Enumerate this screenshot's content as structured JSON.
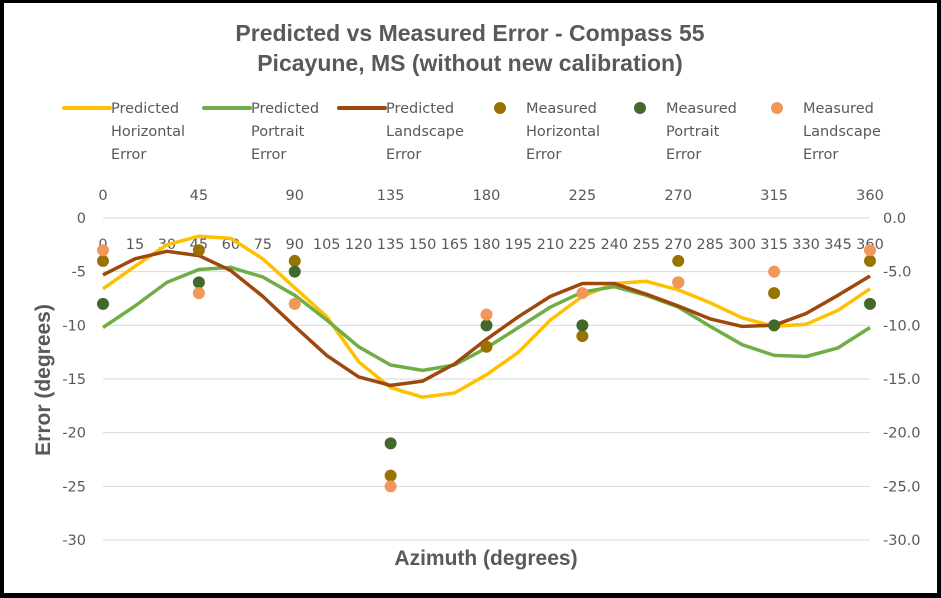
{
  "chart_data": {
    "type": "line",
    "title": "Predicted vs Measured Error - Compass 55",
    "subtitle": "Picayune, MS (without new calibration)",
    "xlabel": "Azimuth (degrees)",
    "ylabel": "Error (degrees)",
    "ylim": [
      -30,
      0
    ],
    "xlim": [
      0,
      360
    ],
    "grid": true,
    "legend_position": "top",
    "y_ticks_left": [
      "0",
      "-5",
      "-10",
      "-15",
      "-20",
      "-25",
      "-30"
    ],
    "y_ticks_right": [
      "0.0",
      "-5.0",
      "-10.0",
      "-15.0",
      "-20.0",
      "-25.0",
      "-30.0"
    ],
    "y_tick_values": [
      0,
      -5,
      -10,
      -15,
      -20,
      -25,
      -30
    ],
    "x_ticks_top": [
      "0",
      "45",
      "90",
      "135",
      "180",
      "225",
      "270",
      "315",
      "360"
    ],
    "x_ticks_top_values": [
      0,
      45,
      90,
      135,
      180,
      225,
      270,
      315,
      360
    ],
    "x_ticks_inner": [
      "0",
      "15",
      "30",
      "45",
      "60",
      "75",
      "90",
      "105",
      "120",
      "135",
      "150",
      "165",
      "180",
      "195",
      "210",
      "225",
      "240",
      "255",
      "270",
      "285",
      "300",
      "315",
      "330",
      "345",
      "360"
    ],
    "x": [
      0,
      15,
      30,
      45,
      60,
      75,
      90,
      105,
      120,
      135,
      150,
      165,
      180,
      195,
      210,
      225,
      240,
      255,
      270,
      285,
      300,
      315,
      330,
      345,
      360
    ],
    "series": [
      {
        "name": "Predicted Horizontal Error",
        "kind": "line",
        "color": "#FFC000",
        "legend_lines": [
          "Predicted",
          "Horizontal",
          "Error"
        ],
        "values": [
          -6.6,
          -4.5,
          -2.5,
          -1.7,
          -1.9,
          -3.8,
          -6.5,
          -9.2,
          -13.4,
          -15.8,
          -16.7,
          -16.3,
          -14.6,
          -12.5,
          -9.5,
          -7.3,
          -6.1,
          -5.9,
          -6.7,
          -7.9,
          -9.3,
          -10.1,
          -9.9,
          -8.6,
          -6.6
        ]
      },
      {
        "name": "Predicted Portrait Error",
        "kind": "line",
        "color": "#70AD47",
        "legend_lines": [
          "Predicted",
          "Portrait",
          "Error"
        ],
        "values": [
          -10.2,
          -8.2,
          -6.0,
          -4.8,
          -4.6,
          -5.5,
          -7.2,
          -9.5,
          -12.0,
          -13.7,
          -14.2,
          -13.7,
          -12.1,
          -10.2,
          -8.3,
          -6.9,
          -6.4,
          -7.2,
          -8.3,
          -10.1,
          -11.8,
          -12.8,
          -12.9,
          -12.1,
          -10.2
        ]
      },
      {
        "name": "Predicted Landscape Error",
        "kind": "line",
        "color": "#9E480E",
        "legend_lines": [
          "Predicted",
          "Landscape",
          "Error"
        ],
        "values": [
          -5.3,
          -3.8,
          -3.1,
          -3.5,
          -4.9,
          -7.3,
          -10.1,
          -12.8,
          -14.8,
          -15.6,
          -15.2,
          -13.6,
          -11.3,
          -9.2,
          -7.3,
          -6.1,
          -6.1,
          -7.1,
          -8.2,
          -9.4,
          -10.1,
          -10.0,
          -8.9,
          -7.2,
          -5.4
        ]
      },
      {
        "name": "Measured Horizontal Error",
        "kind": "scatter",
        "color": "#997300",
        "legend_lines": [
          "Measured",
          "Horizontal",
          "Error"
        ],
        "x": [
          0,
          45,
          90,
          135,
          180,
          225,
          270,
          315,
          360
        ],
        "values": [
          -4,
          -3,
          -4,
          -24,
          -12,
          -11,
          -4,
          -7,
          -4
        ]
      },
      {
        "name": "Measured Portrait Error",
        "kind": "scatter",
        "color": "#43682B",
        "legend_lines": [
          "Measured",
          "Portrait",
          "Error"
        ],
        "x": [
          0,
          45,
          90,
          135,
          180,
          225,
          270,
          315,
          360
        ],
        "values": [
          -8,
          -6,
          -5,
          -21,
          -10,
          -10,
          -6,
          -10,
          -8
        ]
      },
      {
        "name": "Measured Landscape Error",
        "kind": "scatter",
        "color": "#F1975A",
        "legend_lines": [
          "Measured",
          "Landscape",
          "Error"
        ],
        "x": [
          0,
          45,
          90,
          135,
          180,
          225,
          270,
          315,
          360
        ],
        "values": [
          -3,
          -7,
          -8,
          -25,
          -9,
          -7,
          -6,
          -5,
          -3
        ]
      }
    ]
  }
}
